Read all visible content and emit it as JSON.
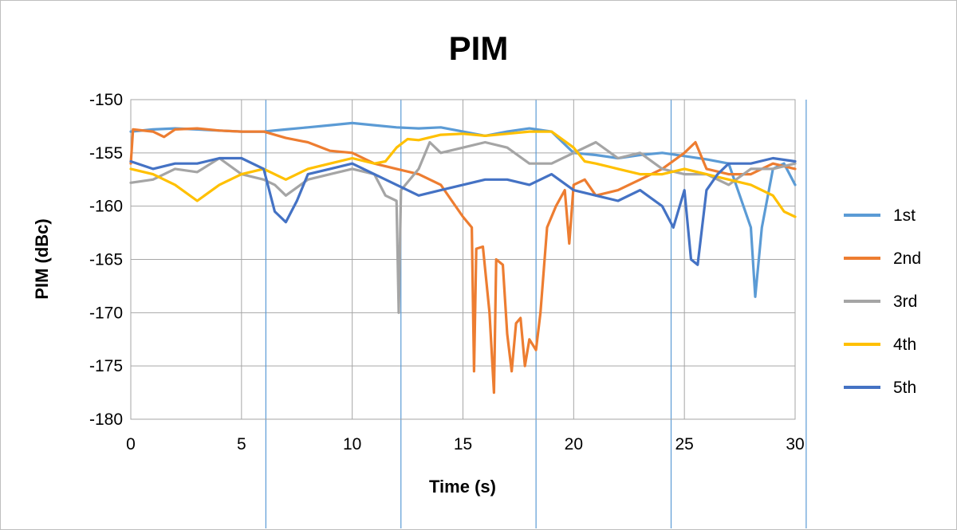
{
  "chart_data": {
    "type": "line",
    "title": "PIM",
    "xlabel": "Time (s)",
    "ylabel": "PIM (dBc)",
    "xlim": [
      0,
      30
    ],
    "ylim": [
      -180,
      -150
    ],
    "x_ticks": [
      0,
      5,
      10,
      15,
      20,
      25,
      30
    ],
    "y_ticks": [
      -150,
      -155,
      -160,
      -165,
      -170,
      -175,
      -180
    ],
    "grid": true,
    "legend_position": "right",
    "event_markers_x": [
      6.1,
      12.2,
      18.3,
      24.4,
      30.5
    ],
    "colors": {
      "1st": "#5b9bd5",
      "2nd": "#ed7d31",
      "3rd": "#a5a5a5",
      "4th": "#ffc000",
      "5th": "#4472c4"
    },
    "series": [
      {
        "name": "1st",
        "color": "#5b9bd5",
        "points": [
          [
            0,
            -153.0
          ],
          [
            1,
            -152.8
          ],
          [
            2,
            -152.7
          ],
          [
            3,
            -152.8
          ],
          [
            4,
            -152.9
          ],
          [
            5,
            -153.0
          ],
          [
            6,
            -153.0
          ],
          [
            7,
            -152.8
          ],
          [
            8,
            -152.6
          ],
          [
            9,
            -152.4
          ],
          [
            10,
            -152.2
          ],
          [
            11,
            -152.4
          ],
          [
            12,
            -152.6
          ],
          [
            13,
            -152.7
          ],
          [
            14,
            -152.6
          ],
          [
            15,
            -153.0
          ],
          [
            16,
            -153.4
          ],
          [
            17,
            -153.0
          ],
          [
            18,
            -152.7
          ],
          [
            19,
            -153.0
          ],
          [
            20,
            -155.0
          ],
          [
            21,
            -155.2
          ],
          [
            22,
            -155.5
          ],
          [
            23,
            -155.2
          ],
          [
            24,
            -155.0
          ],
          [
            25,
            -155.3
          ],
          [
            26,
            -155.6
          ],
          [
            27,
            -156.0
          ],
          [
            27.5,
            -159.0
          ],
          [
            28,
            -162.0
          ],
          [
            28.2,
            -168.5
          ],
          [
            28.5,
            -162.0
          ],
          [
            29,
            -156.5
          ],
          [
            29.5,
            -156.0
          ],
          [
            30,
            -158.0
          ]
        ]
      },
      {
        "name": "2nd",
        "color": "#ed7d31",
        "points": [
          [
            0,
            -156.0
          ],
          [
            0.1,
            -152.8
          ],
          [
            1,
            -153.0
          ],
          [
            1.5,
            -153.5
          ],
          [
            2,
            -152.8
          ],
          [
            3,
            -152.7
          ],
          [
            4,
            -152.9
          ],
          [
            5,
            -153.0
          ],
          [
            6,
            -153.0
          ],
          [
            7,
            -153.6
          ],
          [
            8,
            -154.0
          ],
          [
            9,
            -154.8
          ],
          [
            10,
            -155.0
          ],
          [
            11,
            -156.0
          ],
          [
            12,
            -156.5
          ],
          [
            13,
            -157.0
          ],
          [
            14,
            -158.0
          ],
          [
            14.5,
            -159.5
          ],
          [
            15,
            -161.0
          ],
          [
            15.4,
            -162.0
          ],
          [
            15.5,
            -175.5
          ],
          [
            15.6,
            -164.0
          ],
          [
            15.9,
            -163.8
          ],
          [
            16.2,
            -170.0
          ],
          [
            16.4,
            -177.5
          ],
          [
            16.5,
            -165.0
          ],
          [
            16.8,
            -165.5
          ],
          [
            17.0,
            -172.0
          ],
          [
            17.2,
            -175.5
          ],
          [
            17.4,
            -171.0
          ],
          [
            17.6,
            -170.5
          ],
          [
            17.8,
            -175.0
          ],
          [
            18.0,
            -172.5
          ],
          [
            18.3,
            -173.5
          ],
          [
            18.5,
            -170.0
          ],
          [
            18.8,
            -162.0
          ],
          [
            19.2,
            -160.0
          ],
          [
            19.6,
            -158.5
          ],
          [
            19.8,
            -163.5
          ],
          [
            20,
            -158.0
          ],
          [
            20.5,
            -157.5
          ],
          [
            21,
            -159.0
          ],
          [
            22,
            -158.5
          ],
          [
            23,
            -157.5
          ],
          [
            24,
            -156.5
          ],
          [
            25,
            -155.0
          ],
          [
            25.5,
            -154.0
          ],
          [
            26,
            -156.5
          ],
          [
            27,
            -157.0
          ],
          [
            28,
            -157.0
          ],
          [
            29,
            -156.0
          ],
          [
            30,
            -156.5
          ]
        ]
      },
      {
        "name": "3rd",
        "color": "#a5a5a5",
        "points": [
          [
            0,
            -157.8
          ],
          [
            1,
            -157.5
          ],
          [
            2,
            -156.5
          ],
          [
            3,
            -156.8
          ],
          [
            4,
            -155.5
          ],
          [
            5,
            -157.0
          ],
          [
            6,
            -157.5
          ],
          [
            6.5,
            -158.0
          ],
          [
            7,
            -159.0
          ],
          [
            8,
            -157.5
          ],
          [
            9,
            -157.0
          ],
          [
            10,
            -156.5
          ],
          [
            11,
            -157.0
          ],
          [
            11.5,
            -159.0
          ],
          [
            12.0,
            -159.5
          ],
          [
            12.1,
            -170.0
          ],
          [
            12.2,
            -158.5
          ],
          [
            13,
            -156.5
          ],
          [
            13.5,
            -154.0
          ],
          [
            14,
            -155.0
          ],
          [
            15,
            -154.5
          ],
          [
            16,
            -154.0
          ],
          [
            17,
            -154.5
          ],
          [
            18,
            -156.0
          ],
          [
            19,
            -156.0
          ],
          [
            20,
            -155.0
          ],
          [
            21,
            -154.0
          ],
          [
            22,
            -155.5
          ],
          [
            23,
            -155.0
          ],
          [
            24,
            -156.5
          ],
          [
            25,
            -157.0
          ],
          [
            26,
            -157.0
          ],
          [
            27,
            -158.0
          ],
          [
            28,
            -156.5
          ],
          [
            29,
            -156.5
          ],
          [
            30,
            -156.0
          ]
        ]
      },
      {
        "name": "4th",
        "color": "#ffc000",
        "points": [
          [
            0,
            -156.5
          ],
          [
            1,
            -157.0
          ],
          [
            2,
            -158.0
          ],
          [
            3,
            -159.5
          ],
          [
            4,
            -158.0
          ],
          [
            5,
            -157.0
          ],
          [
            6,
            -156.5
          ],
          [
            7,
            -157.5
          ],
          [
            8,
            -156.5
          ],
          [
            9,
            -156.0
          ],
          [
            10,
            -155.5
          ],
          [
            11,
            -156.0
          ],
          [
            11.5,
            -155.8
          ],
          [
            12,
            -154.5
          ],
          [
            12.5,
            -153.7
          ],
          [
            13,
            -153.8
          ],
          [
            14,
            -153.3
          ],
          [
            15,
            -153.2
          ],
          [
            16,
            -153.4
          ],
          [
            17,
            -153.2
          ],
          [
            18,
            -153.0
          ],
          [
            19,
            -153.0
          ],
          [
            20,
            -154.5
          ],
          [
            20.5,
            -155.8
          ],
          [
            21,
            -156.0
          ],
          [
            22,
            -156.5
          ],
          [
            23,
            -157.0
          ],
          [
            24,
            -157.0
          ],
          [
            25,
            -156.5
          ],
          [
            26,
            -157.0
          ],
          [
            27,
            -157.5
          ],
          [
            28,
            -158.0
          ],
          [
            29,
            -159.0
          ],
          [
            29.5,
            -160.5
          ],
          [
            30,
            -161.0
          ]
        ]
      },
      {
        "name": "5th",
        "color": "#4472c4",
        "points": [
          [
            0,
            -155.8
          ],
          [
            1,
            -156.5
          ],
          [
            2,
            -156.0
          ],
          [
            3,
            -156.0
          ],
          [
            4,
            -155.5
          ],
          [
            5,
            -155.5
          ],
          [
            6,
            -156.5
          ],
          [
            6.5,
            -160.5
          ],
          [
            7,
            -161.5
          ],
          [
            7.5,
            -159.5
          ],
          [
            8,
            -157.0
          ],
          [
            9,
            -156.5
          ],
          [
            10,
            -156.0
          ],
          [
            11,
            -157.0
          ],
          [
            12,
            -158.0
          ],
          [
            13,
            -159.0
          ],
          [
            14,
            -158.5
          ],
          [
            15,
            -158.0
          ],
          [
            16,
            -157.5
          ],
          [
            17,
            -157.5
          ],
          [
            18,
            -158.0
          ],
          [
            19,
            -157.0
          ],
          [
            20,
            -158.5
          ],
          [
            21,
            -159.0
          ],
          [
            22,
            -159.5
          ],
          [
            23,
            -158.5
          ],
          [
            24,
            -160.0
          ],
          [
            24.5,
            -162.0
          ],
          [
            25,
            -158.5
          ],
          [
            25.3,
            -165.0
          ],
          [
            25.6,
            -165.5
          ],
          [
            26,
            -158.5
          ],
          [
            26.5,
            -157.0
          ],
          [
            27,
            -156.0
          ],
          [
            28,
            -156.0
          ],
          [
            29,
            -155.5
          ],
          [
            30,
            -155.8
          ]
        ]
      }
    ]
  }
}
